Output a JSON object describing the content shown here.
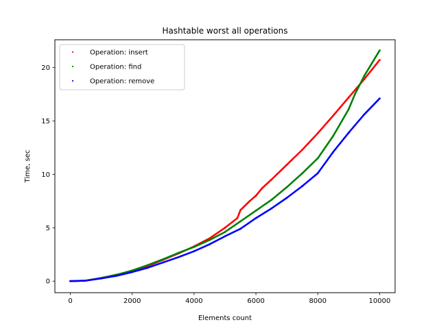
{
  "chart_data": {
    "type": "scatter",
    "title": "Hashtable worst all operations",
    "xlabel": "Elements count",
    "ylabel": "Time, sec",
    "xlim": [
      -500,
      10500
    ],
    "ylim": [
      -1.08,
      22.6
    ],
    "xticks": [
      0,
      2000,
      4000,
      6000,
      8000,
      10000
    ],
    "yticks": [
      0,
      5,
      10,
      15,
      20
    ],
    "grid": false,
    "legend_position": "upper-left",
    "series": [
      {
        "name": "Operation: insert",
        "color": "#ff0000",
        "x": [
          0,
          500,
          1000,
          1500,
          2000,
          2500,
          3000,
          3500,
          4000,
          4500,
          5000,
          5400,
          5500,
          5800,
          6000,
          6200,
          6500,
          7000,
          7500,
          8000,
          8500,
          9000,
          9500,
          10000
        ],
        "y": [
          0,
          0.05,
          0.3,
          0.6,
          0.95,
          1.4,
          2.0,
          2.6,
          3.25,
          4.0,
          5.0,
          5.9,
          6.65,
          7.5,
          8.0,
          8.7,
          9.5,
          10.9,
          12.3,
          13.85,
          15.5,
          17.2,
          18.9,
          20.7
        ]
      },
      {
        "name": "Operation: find",
        "color": "#008000",
        "x": [
          0,
          500,
          1000,
          1500,
          2000,
          2500,
          3000,
          3500,
          4000,
          4500,
          5000,
          5500,
          6000,
          6500,
          7000,
          7500,
          8000,
          8500,
          9000,
          9200,
          9500,
          10000
        ],
        "y": [
          0,
          0.05,
          0.3,
          0.6,
          1.0,
          1.5,
          2.05,
          2.65,
          3.2,
          3.85,
          4.6,
          5.6,
          6.6,
          7.6,
          8.8,
          10.1,
          11.5,
          13.6,
          16.1,
          17.5,
          19.2,
          21.6
        ]
      },
      {
        "name": "Operation: remove",
        "color": "#0000ff",
        "x": [
          0,
          500,
          1000,
          1500,
          2000,
          2500,
          3000,
          3500,
          4000,
          4500,
          5000,
          5500,
          6000,
          6500,
          7000,
          7500,
          8000,
          8500,
          9000,
          9500,
          10000
        ],
        "y": [
          0,
          0.05,
          0.25,
          0.5,
          0.85,
          1.25,
          1.75,
          2.25,
          2.8,
          3.45,
          4.2,
          4.9,
          5.9,
          6.8,
          7.8,
          8.9,
          10.1,
          12.1,
          13.9,
          15.6,
          17.1
        ]
      }
    ]
  }
}
